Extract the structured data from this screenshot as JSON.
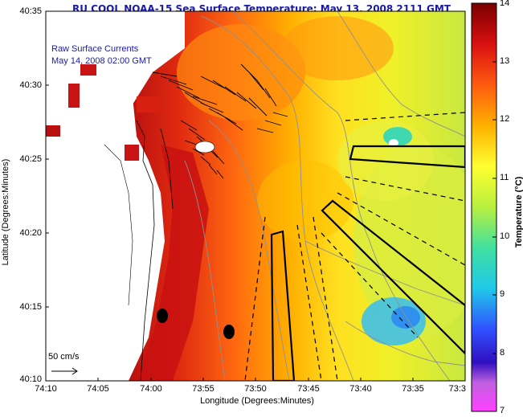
{
  "title": "RU COOL  NOAA-15  Sea Surface Temperature:  May 13, 2008 2111 GMT",
  "legend": {
    "line1": "Raw Surface Currents",
    "line2": "May 14, 2008 02:00 GMT"
  },
  "scale_label": "50 cm/s",
  "x_axis": {
    "label": "Longitude (Degrees:Minutes)",
    "ticks": [
      "74:10",
      "74:05",
      "74:00",
      "73:55",
      "73:50",
      "73:45",
      "73:40",
      "73:35",
      "73:3"
    ]
  },
  "y_axis": {
    "label": "Latitude (Degrees:Minutes)",
    "ticks": [
      "40:35",
      "40:30",
      "40:25",
      "40:20",
      "40:15",
      "40:10"
    ]
  },
  "colorbar": {
    "title": "Temperature (°C)",
    "ticks": [
      "14",
      "13",
      "12",
      "11",
      "10",
      "9",
      "8",
      "7"
    ],
    "range": [
      7,
      14
    ]
  },
  "colors": {
    "title": "#1a1aa8",
    "warm": "#c81414",
    "mid": "#f0b400",
    "cool": "#c8e040",
    "cold": "#30b0e0"
  }
}
